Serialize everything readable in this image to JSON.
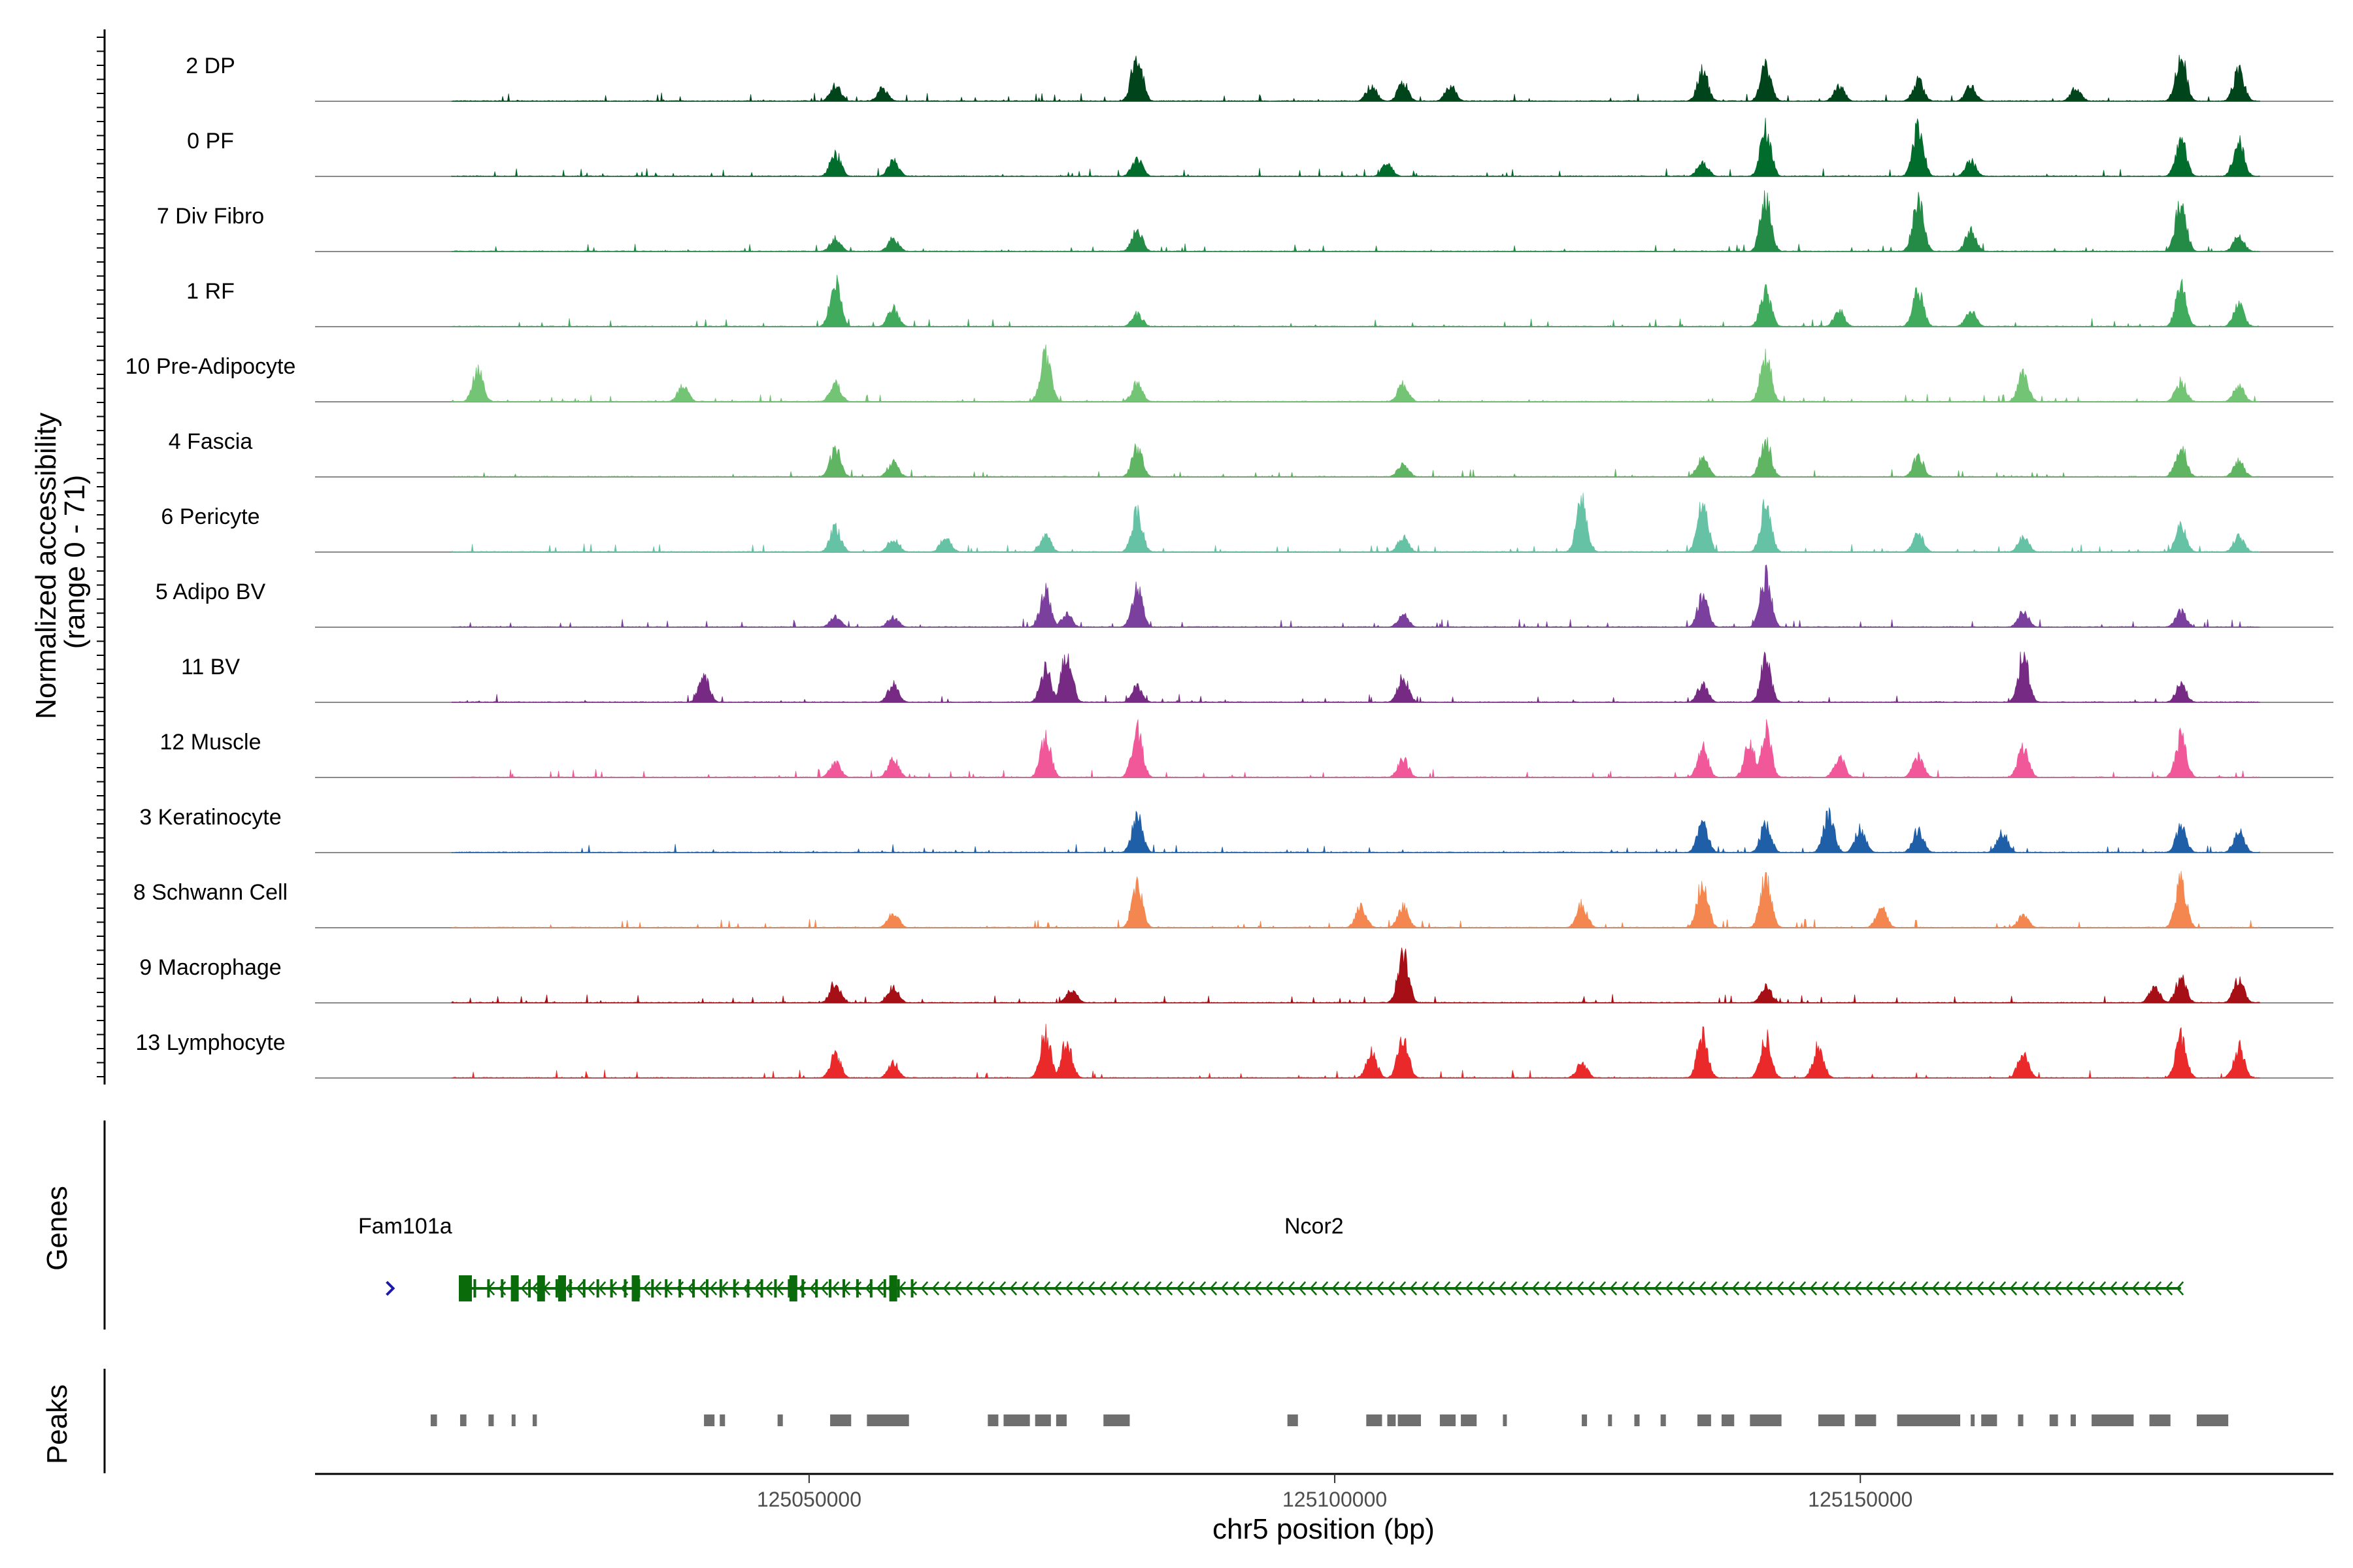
{
  "chart_data": {
    "type": "coverage",
    "y_axis_label_line1": "Normalized accessibility",
    "y_axis_label_line2": "(range 0 - 71)",
    "y_range": [
      0,
      71
    ],
    "x_range": [
      125003000,
      125195000
    ],
    "x_label": "chr5 position (bp)",
    "x_ticks": [
      125050000,
      125100000,
      125150000
    ],
    "x_tick_labels": [
      "125050000",
      "125100000",
      "125150000"
    ],
    "genes_label": "Genes",
    "peaks_label": "Peaks",
    "tracks": [
      {
        "name": "2 DP",
        "color": "#00441b",
        "peaks": [
          [
            125052500,
            0.3
          ],
          [
            125057000,
            0.25
          ],
          [
            125081200,
            0.95
          ],
          [
            125103500,
            0.3
          ],
          [
            125106500,
            0.35
          ],
          [
            125111000,
            0.3
          ],
          [
            125135000,
            0.6
          ],
          [
            125141000,
            0.7
          ],
          [
            125148000,
            0.3
          ],
          [
            125155500,
            0.4
          ],
          [
            125160500,
            0.3
          ],
          [
            125170500,
            0.25
          ],
          [
            125180500,
            0.9
          ],
          [
            125186000,
            0.6
          ]
        ]
      },
      {
        "name": "0 PF",
        "color": "#006d2c",
        "peaks": [
          [
            125052500,
            0.45
          ],
          [
            125058000,
            0.3
          ],
          [
            125081200,
            0.35
          ],
          [
            125105000,
            0.25
          ],
          [
            125135000,
            0.3
          ],
          [
            125141000,
            0.9
          ],
          [
            125155500,
            0.95
          ],
          [
            125160500,
            0.3
          ],
          [
            125180500,
            0.7
          ],
          [
            125186000,
            0.7
          ]
        ]
      },
      {
        "name": "7 Div Fibro",
        "color": "#238b45",
        "peaks": [
          [
            125052500,
            0.25
          ],
          [
            125058000,
            0.25
          ],
          [
            125081200,
            0.4
          ],
          [
            125141000,
            1.0
          ],
          [
            125155500,
            1.0
          ],
          [
            125160500,
            0.4
          ],
          [
            125180500,
            1.0
          ],
          [
            125186000,
            0.3
          ]
        ]
      },
      {
        "name": "1 RF",
        "color": "#41ab5d",
        "peaks": [
          [
            125052500,
            0.85
          ],
          [
            125058000,
            0.35
          ],
          [
            125081200,
            0.25
          ],
          [
            125141000,
            0.7
          ],
          [
            125148000,
            0.3
          ],
          [
            125155500,
            0.7
          ],
          [
            125160500,
            0.3
          ],
          [
            125180500,
            0.8
          ],
          [
            125186000,
            0.4
          ]
        ]
      },
      {
        "name": "10 Pre-Adipocyte",
        "color": "#74c476",
        "peaks": [
          [
            125018500,
            0.6
          ],
          [
            125038000,
            0.3
          ],
          [
            125052500,
            0.35
          ],
          [
            125072500,
            0.9
          ],
          [
            125081200,
            0.35
          ],
          [
            125106500,
            0.35
          ],
          [
            125141000,
            0.9
          ],
          [
            125165500,
            0.55
          ],
          [
            125180500,
            0.4
          ],
          [
            125186000,
            0.3
          ]
        ]
      },
      {
        "name": "4 Fascia",
        "color": "#5fb562",
        "peaks": [
          [
            125052500,
            0.55
          ],
          [
            125058000,
            0.3
          ],
          [
            125081200,
            0.55
          ],
          [
            125106500,
            0.25
          ],
          [
            125135000,
            0.4
          ],
          [
            125141000,
            0.7
          ],
          [
            125155500,
            0.4
          ],
          [
            125180500,
            0.6
          ],
          [
            125186000,
            0.3
          ]
        ]
      },
      {
        "name": "6 Pericyte",
        "color": "#66c2a4",
        "peaks": [
          [
            125052500,
            0.5
          ],
          [
            125058000,
            0.25
          ],
          [
            125063000,
            0.3
          ],
          [
            125072500,
            0.3
          ],
          [
            125081200,
            0.75
          ],
          [
            125106500,
            0.3
          ],
          [
            125123500,
            0.95
          ],
          [
            125135000,
            0.95
          ],
          [
            125141000,
            0.9
          ],
          [
            125155500,
            0.35
          ],
          [
            125165500,
            0.3
          ],
          [
            125180500,
            0.5
          ],
          [
            125186000,
            0.3
          ]
        ]
      },
      {
        "name": "5 Adipo BV",
        "color": "#7b3f9e",
        "peaks": [
          [
            125052500,
            0.2
          ],
          [
            125058000,
            0.2
          ],
          [
            125072500,
            0.7
          ],
          [
            125074500,
            0.25
          ],
          [
            125081200,
            0.75
          ],
          [
            125106500,
            0.25
          ],
          [
            125135000,
            0.6
          ],
          [
            125141000,
            1.0
          ],
          [
            125165500,
            0.3
          ],
          [
            125180500,
            0.3
          ]
        ]
      },
      {
        "name": "11 BV",
        "color": "#762a83",
        "peaks": [
          [
            125040000,
            0.5
          ],
          [
            125058000,
            0.35
          ],
          [
            125072500,
            0.65
          ],
          [
            125074500,
            1.0
          ],
          [
            125081200,
            0.3
          ],
          [
            125106500,
            0.5
          ],
          [
            125135000,
            0.35
          ],
          [
            125141000,
            0.8
          ],
          [
            125165500,
            0.9
          ],
          [
            125180500,
            0.35
          ]
        ]
      },
      {
        "name": "12 Muscle",
        "color": "#f0589a",
        "peaks": [
          [
            125052500,
            0.3
          ],
          [
            125058000,
            0.35
          ],
          [
            125072500,
            0.75
          ],
          [
            125081200,
            0.9
          ],
          [
            125106500,
            0.35
          ],
          [
            125135000,
            0.6
          ],
          [
            125139500,
            0.65
          ],
          [
            125141000,
            0.9
          ],
          [
            125148000,
            0.4
          ],
          [
            125155500,
            0.4
          ],
          [
            125165500,
            0.6
          ],
          [
            125180500,
            0.8
          ]
        ]
      },
      {
        "name": "3 Keratinocyte",
        "color": "#1f5fa8",
        "peaks": [
          [
            125081200,
            0.7
          ],
          [
            125135000,
            0.6
          ],
          [
            125141000,
            0.55
          ],
          [
            125147000,
            0.75
          ],
          [
            125150000,
            0.45
          ],
          [
            125155500,
            0.45
          ],
          [
            125163500,
            0.4
          ],
          [
            125180500,
            0.5
          ],
          [
            125186000,
            0.4
          ]
        ]
      },
      {
        "name": "8 Schwann Cell",
        "color": "#f4874f",
        "peaks": [
          [
            125058000,
            0.3
          ],
          [
            125081200,
            0.8
          ],
          [
            125102500,
            0.4
          ],
          [
            125106500,
            0.4
          ],
          [
            125123500,
            0.45
          ],
          [
            125135000,
            0.9
          ],
          [
            125141000,
            1.0
          ],
          [
            125152000,
            0.4
          ],
          [
            125180500,
            0.9
          ],
          [
            125165500,
            0.25
          ]
        ]
      },
      {
        "name": "9 Macrophage",
        "color": "#a50f15",
        "peaks": [
          [
            125052500,
            0.4
          ],
          [
            125058000,
            0.3
          ],
          [
            125075000,
            0.25
          ],
          [
            125106500,
            0.95
          ],
          [
            125141000,
            0.35
          ],
          [
            125178000,
            0.3
          ],
          [
            125180500,
            0.5
          ],
          [
            125186000,
            0.45
          ]
        ]
      },
      {
        "name": "13 Lymphocyte",
        "color": "#e9292a",
        "peaks": [
          [
            125052500,
            0.45
          ],
          [
            125058000,
            0.3
          ],
          [
            125072500,
            0.85
          ],
          [
            125074500,
            0.7
          ],
          [
            125103500,
            0.5
          ],
          [
            125106500,
            0.8
          ],
          [
            125123500,
            0.3
          ],
          [
            125135000,
            0.85
          ],
          [
            125141000,
            0.8
          ],
          [
            125146000,
            0.6
          ],
          [
            125165500,
            0.5
          ],
          [
            125180500,
            0.8
          ],
          [
            125186000,
            0.6
          ]
        ]
      }
    ],
    "genes": [
      {
        "name": "Fam101a",
        "start": 125010000,
        "end": 125011000,
        "strand": "+",
        "color": "#1a1aa6"
      },
      {
        "name": "Ncor2",
        "start": 125017000,
        "end": 125180500,
        "strand": "-",
        "color": "#0a6b0a",
        "exons": [
          125017300,
          125022000,
          125024500,
          125026500,
          125033500,
          125048500,
          125058000
        ]
      }
    ],
    "peaks": [
      [
        125014000,
        125014600
      ],
      [
        125016800,
        125017400
      ],
      [
        125019500,
        125020000
      ],
      [
        125021700,
        125022000
      ],
      [
        125023700,
        125024100
      ],
      [
        125040000,
        125041000
      ],
      [
        125041500,
        125042000
      ],
      [
        125047000,
        125047500
      ],
      [
        125052000,
        125054000
      ],
      [
        125055500,
        125059500
      ],
      [
        125067000,
        125068000
      ],
      [
        125068500,
        125071000
      ],
      [
        125071500,
        125073000
      ],
      [
        125073500,
        125074500
      ],
      [
        125078000,
        125080500
      ],
      [
        125095500,
        125096500
      ],
      [
        125103000,
        125104500
      ],
      [
        125105000,
        125105800
      ],
      [
        125106000,
        125108200
      ],
      [
        125110000,
        125111500
      ],
      [
        125112000,
        125113500
      ],
      [
        125116000,
        125116300
      ],
      [
        125123500,
        125124000
      ],
      [
        125126000,
        125126300
      ],
      [
        125128500,
        125129000
      ],
      [
        125131000,
        125131500
      ],
      [
        125134500,
        125135800
      ],
      [
        125136800,
        125138000
      ],
      [
        125139500,
        125142500
      ],
      [
        125146000,
        125148500
      ],
      [
        125149500,
        125151500
      ],
      [
        125153500,
        125159500
      ],
      [
        125160500,
        125160800
      ],
      [
        125161500,
        125163000
      ],
      [
        125165000,
        125165500
      ],
      [
        125168000,
        125168800
      ],
      [
        125170000,
        125170500
      ],
      [
        125172000,
        125176000
      ],
      [
        125177500,
        125179500
      ],
      [
        125182000,
        125185000
      ]
    ]
  }
}
